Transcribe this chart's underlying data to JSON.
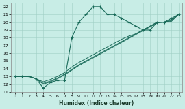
{
  "xlabel": "Humidex (Indice chaleur)",
  "xlim": [
    -0.5,
    23.5
  ],
  "ylim": [
    11,
    22.5
  ],
  "xticks": [
    0,
    1,
    2,
    3,
    4,
    5,
    6,
    7,
    8,
    9,
    10,
    11,
    12,
    13,
    14,
    15,
    16,
    17,
    18,
    19,
    20,
    21,
    22,
    23
  ],
  "yticks": [
    11,
    12,
    13,
    14,
    15,
    16,
    17,
    18,
    19,
    20,
    21,
    22
  ],
  "background_color": "#c8ede6",
  "grid_color": "#a0cfc5",
  "line_color": "#1a6b5a",
  "line_main_x": [
    0,
    1,
    2,
    3,
    4,
    5,
    6,
    7,
    8,
    9,
    10,
    11,
    12,
    13,
    14,
    15,
    16,
    17,
    18,
    19,
    20,
    21,
    22,
    23
  ],
  "line_main_y": [
    13,
    13,
    13,
    12.7,
    11.5,
    12.2,
    12.5,
    12.5,
    18,
    20,
    21,
    22,
    22,
    21,
    21,
    20.5,
    20,
    19.5,
    19,
    19,
    20,
    20,
    20.5,
    21
  ],
  "line2_x": [
    0,
    1,
    2,
    3,
    4,
    5,
    6,
    7,
    8,
    9,
    10,
    11,
    12,
    13,
    14,
    15,
    16,
    17,
    18,
    19,
    20,
    21,
    22,
    23
  ],
  "line2_y": [
    13,
    13,
    13,
    12.7,
    12.3,
    12.6,
    13.0,
    13.5,
    14.2,
    14.8,
    15.3,
    15.8,
    16.3,
    16.8,
    17.3,
    17.8,
    18.2,
    18.5,
    19.0,
    19.5,
    20.0,
    20.0,
    20.3,
    21
  ],
  "line3_x": [
    0,
    1,
    2,
    3,
    4,
    5,
    6,
    7,
    8,
    9,
    10,
    11,
    12,
    13,
    14,
    15,
    16,
    17,
    18,
    19,
    20,
    21,
    22,
    23
  ],
  "line3_y": [
    13,
    13,
    13,
    12.7,
    12.1,
    12.4,
    12.8,
    13.3,
    13.9,
    14.5,
    15.0,
    15.5,
    16.0,
    16.5,
    17.0,
    17.5,
    18.0,
    18.5,
    19.0,
    19.5,
    20.0,
    20.0,
    20.2,
    21
  ],
  "line4_x": [
    0,
    1,
    2,
    3,
    4,
    5,
    6,
    7,
    8,
    9,
    10,
    11,
    12,
    13,
    14,
    15,
    16,
    17,
    18,
    19,
    20,
    21,
    22,
    23
  ],
  "line4_y": [
    13,
    13,
    13,
    12.7,
    12.0,
    12.3,
    12.7,
    13.2,
    13.8,
    14.4,
    14.9,
    15.4,
    15.9,
    16.4,
    16.9,
    17.4,
    17.9,
    18.4,
    18.9,
    19.4,
    19.9,
    20.0,
    20.1,
    21
  ]
}
